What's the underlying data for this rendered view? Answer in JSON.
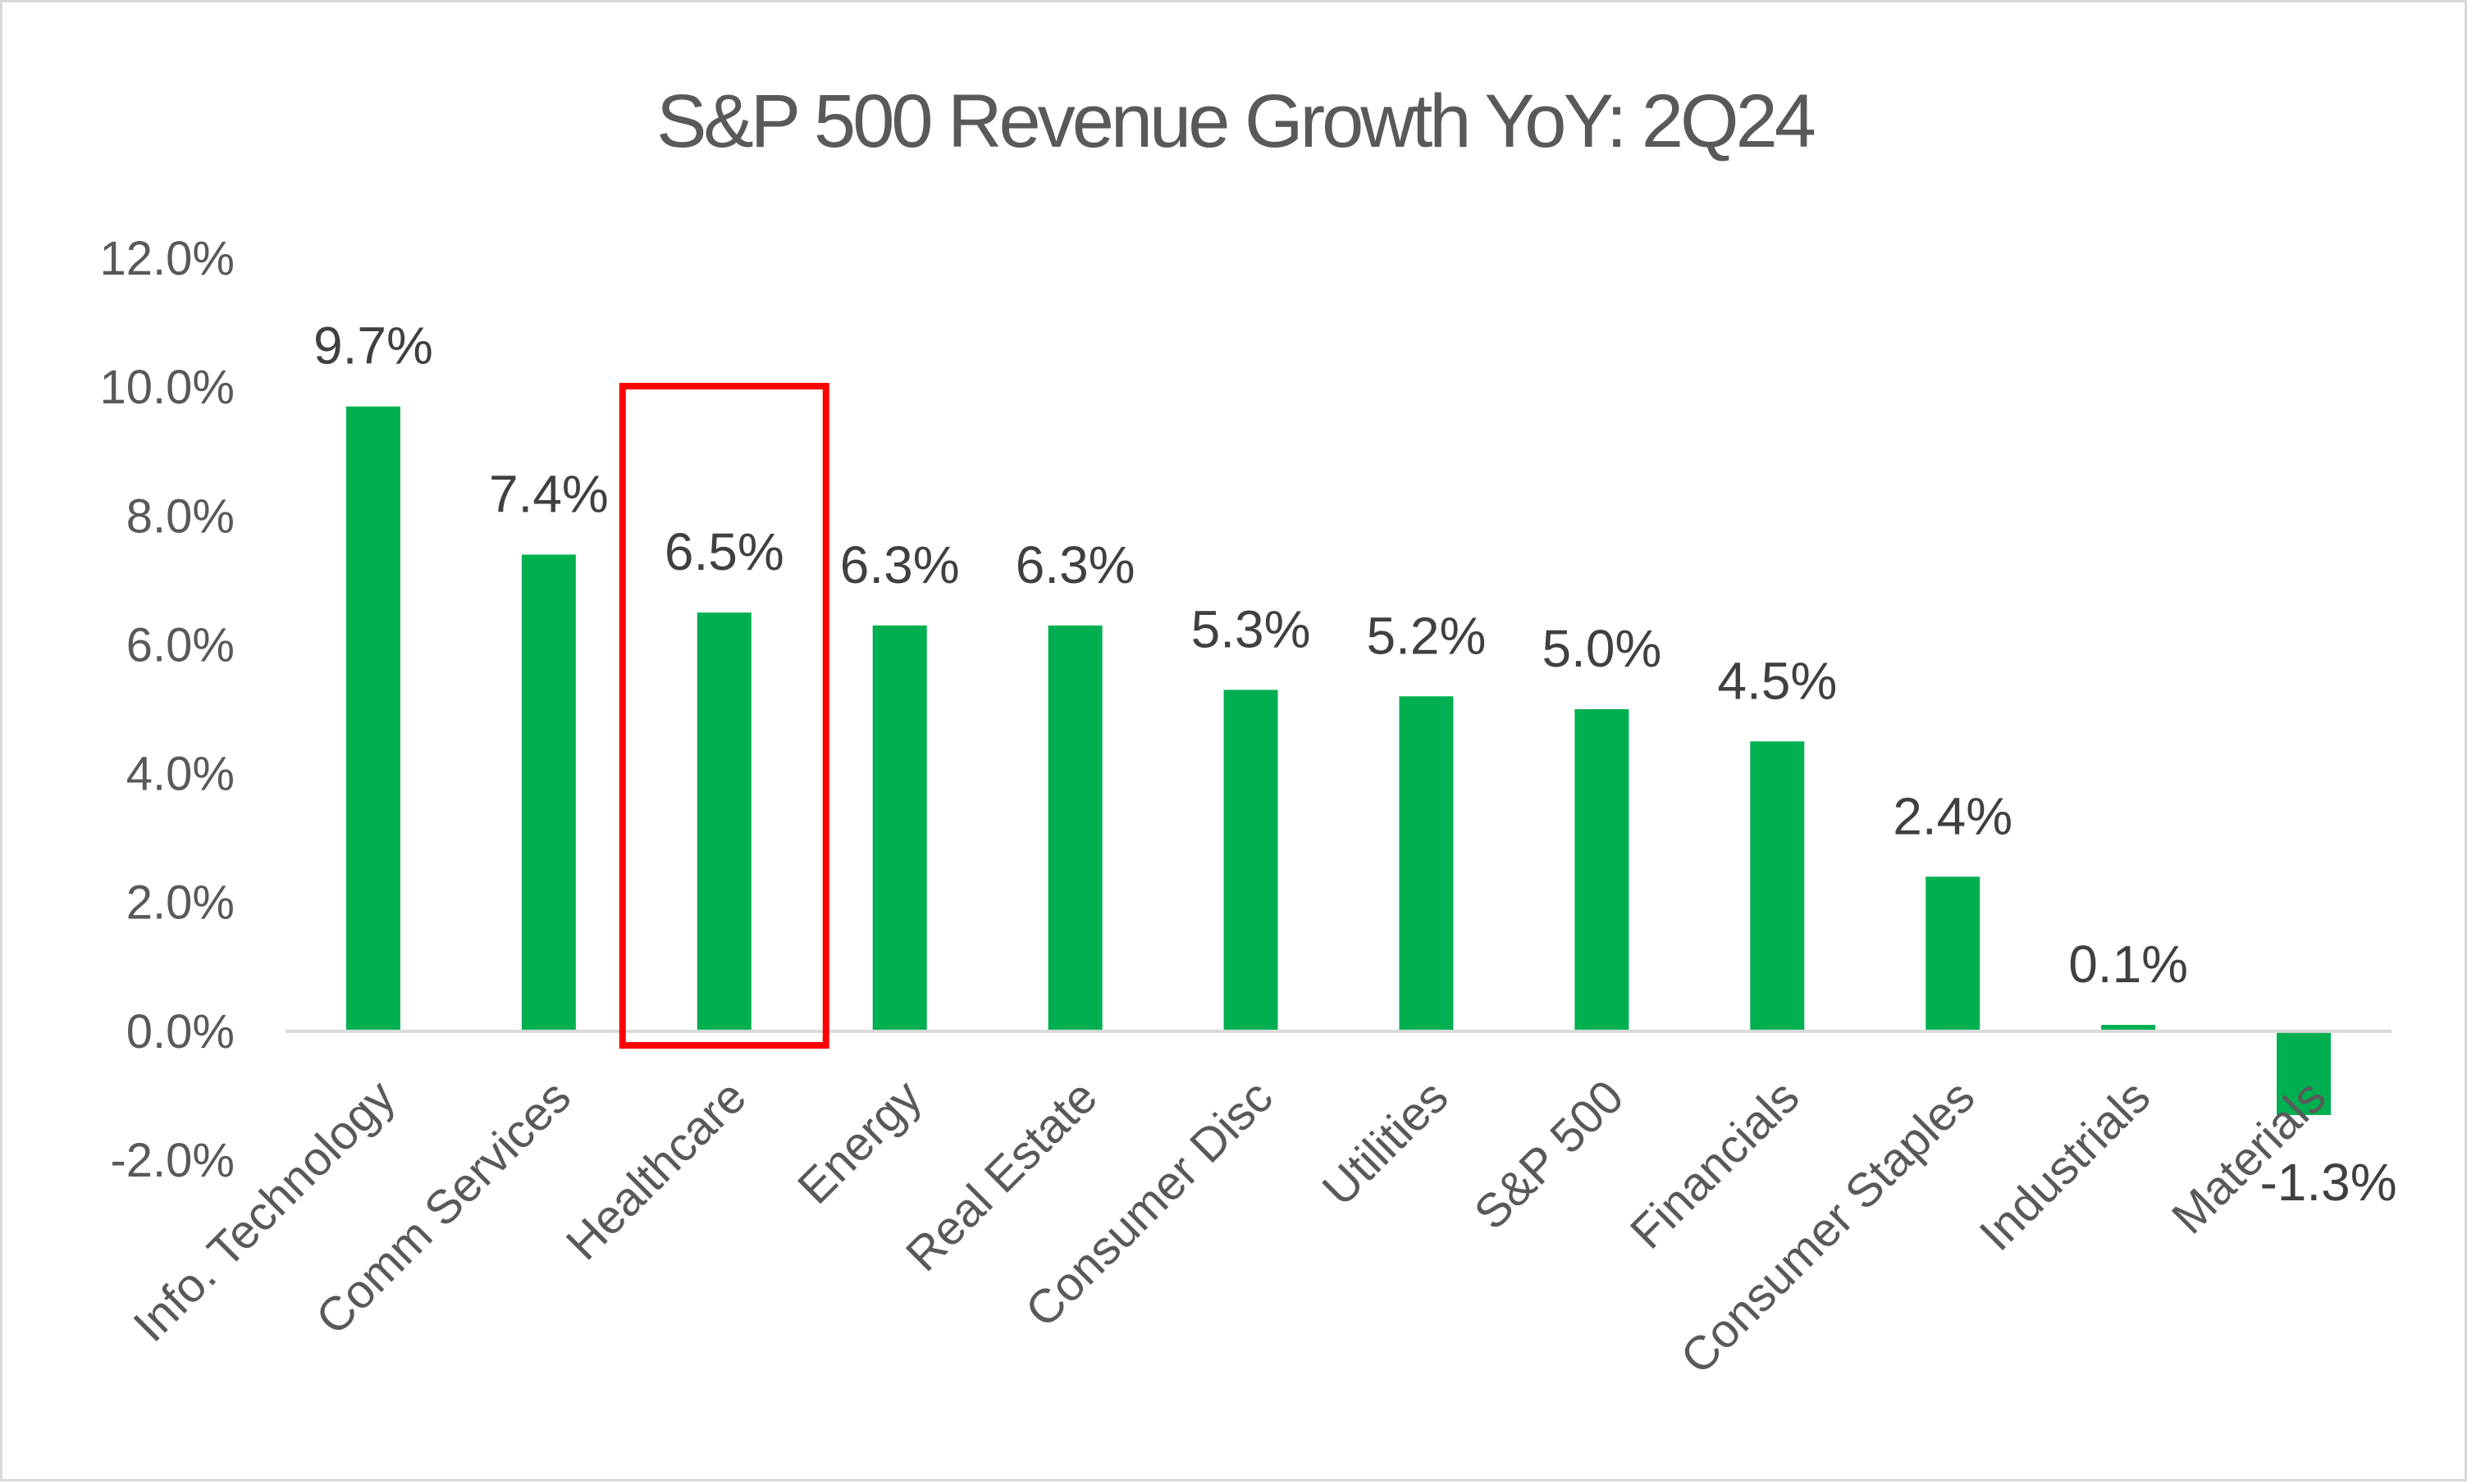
{
  "chart_data": {
    "type": "bar",
    "title": "S&P 500 Revenue Growth YoY: 2Q24",
    "xlabel": "",
    "ylabel": "",
    "categories": [
      "Info. Technology",
      "Comm Services",
      "Healthcare",
      "Energy",
      "Real Estate",
      "Consumer Disc",
      "Utilities",
      "S&P 500",
      "Financials",
      "Consumer Staples",
      "Industrials",
      "Materials"
    ],
    "values": [
      9.7,
      7.4,
      6.5,
      6.3,
      6.3,
      5.3,
      5.2,
      5.0,
      4.5,
      2.4,
      0.1,
      -1.3
    ],
    "data_labels": [
      "9.7%",
      "7.4%",
      "6.5%",
      "6.3%",
      "6.3%",
      "5.3%",
      "5.2%",
      "5.0%",
      "4.5%",
      "2.4%",
      "0.1%",
      "-1.3%"
    ],
    "yticks": [
      -2,
      0,
      2,
      4,
      6,
      8,
      10,
      12
    ],
    "ytick_labels": [
      "-2.0%",
      "0.0%",
      "2.0%",
      "4.0%",
      "6.0%",
      "8.0%",
      "10.0%",
      "12.0%"
    ],
    "ylim": [
      -2,
      12
    ],
    "grid": false,
    "legend": "none",
    "highlighted_category": "Healthcare",
    "colors": {
      "bar": "#00b050",
      "highlight_box": "#ff0000",
      "axis": "#d9d9d9",
      "text": "#595959",
      "label": "#404040"
    }
  }
}
